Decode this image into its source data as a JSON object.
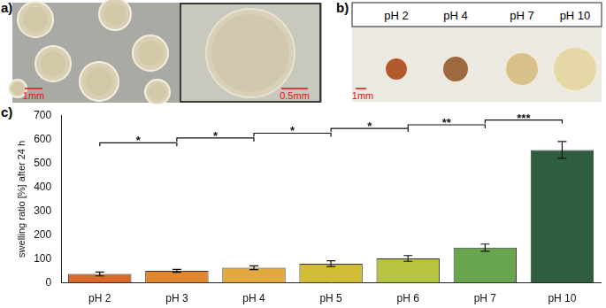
{
  "figure": {
    "panels": [
      {
        "label": "a)",
        "scale_bars": [
          "1mm",
          "0.5mm"
        ]
      },
      {
        "label": "b)",
        "columns": [
          "pH 2",
          "pH 4",
          "pH 7",
          "pH 10"
        ],
        "scale_bar": "1mm"
      },
      {
        "label": "c)"
      }
    ]
  },
  "chart_data": {
    "type": "bar",
    "y_label": "swelling ratio [%] after 24 h",
    "categories": [
      "pH 2",
      "pH 3",
      "pH 4",
      "pH 5",
      "pH 6",
      "pH 7",
      "pH 10"
    ],
    "values": [
      37,
      50,
      63,
      80,
      102,
      147,
      555
    ],
    "errors": [
      8,
      6,
      8,
      12,
      12,
      15,
      35
    ],
    "colors": [
      "#d9692a",
      "#e0862e",
      "#e2a93c",
      "#d4bd36",
      "#b6c440",
      "#67a64e",
      "#2e5e3e"
    ],
    "ylim": [
      0,
      700
    ],
    "yticks": [
      0,
      100,
      200,
      300,
      400,
      500,
      600,
      700
    ],
    "grid": false,
    "annotations": [
      {
        "from": "pH 2",
        "to": "pH 3",
        "y": 585,
        "text": "*"
      },
      {
        "from": "pH 3",
        "to": "pH 4",
        "y": 605,
        "text": "*"
      },
      {
        "from": "pH 4",
        "to": "pH 5",
        "y": 625,
        "text": "*"
      },
      {
        "from": "pH 5",
        "to": "pH 6",
        "y": 645,
        "text": "*"
      },
      {
        "from": "pH 6",
        "to": "pH 7",
        "y": 660,
        "text": "**"
      },
      {
        "from": "pH 7",
        "to": "pH 10",
        "y": 680,
        "text": "***"
      }
    ]
  }
}
